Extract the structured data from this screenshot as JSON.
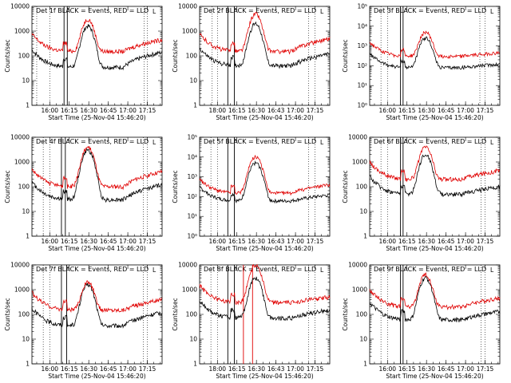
{
  "chart_data": [
    {
      "type": "line",
      "title": "Det 1f BLACK = Events, RED = LLD",
      "xlabel": "Start Time (25-Nov-04 15:46:20)",
      "ylabel": "Counts/sec",
      "x_tick_labels": [
        "16:00",
        "16:15",
        "16:30",
        "16:45",
        "17:00",
        "17:15"
      ],
      "y_tick_labels": [
        "1",
        "10",
        "100",
        "1000",
        "10000"
      ],
      "yscale": "log",
      "ylim": [
        1,
        10000
      ],
      "legend_mark": "L",
      "series": [
        {
          "color": "#000000",
          "base": 35,
          "peak": 1600,
          "spike": 1300,
          "end": 140
        },
        {
          "color": "#e00000",
          "base": 150,
          "peak": 3000,
          "spike": 1200,
          "end": 450
        }
      ],
      "solid_lines": [
        "16:11",
        "16:13.5"
      ],
      "red_lines": [],
      "dotted_lines": [
        "15:50",
        "16:00",
        "17:12.5",
        "17:15"
      ]
    },
    {
      "type": "line",
      "title": "Det 2f BLACK = Events, RED = LLD",
      "xlabel": "Start Time (25-Nov-04 15:46:20)",
      "ylabel": "Counts/sec",
      "x_tick_labels": [
        "18:00",
        "16:15",
        "16:30",
        "16:43",
        "17:00",
        "17:15"
      ],
      "y_tick_labels": [
        "1",
        "10",
        "100",
        "1000",
        "10000"
      ],
      "yscale": "log",
      "ylim": [
        1,
        10000
      ],
      "legend_mark": "L",
      "series": [
        {
          "color": "#000000",
          "base": 40,
          "peak": 2000,
          "spike": 150,
          "end": 120
        },
        {
          "color": "#e00000",
          "base": 150,
          "peak": 5000,
          "spike": 500,
          "end": 500
        }
      ],
      "solid_lines": [
        "16:08",
        "16:13"
      ],
      "red_lines": [],
      "dotted_lines": [
        "15:56",
        "16:00",
        "17:10",
        "17:15"
      ]
    },
    {
      "type": "line",
      "title": "Det 3f BLACK = Events, RED = LLD",
      "xlabel": "Start Time (25-Nov-04 15:46:20)",
      "ylabel": "Counts/sec",
      "x_tick_labels": [
        "16:00",
        "16:15",
        "16:30",
        "16:45",
        "17:00",
        "17:15"
      ],
      "y_tick_labels": [
        "10⁰",
        "10¹",
        "10²",
        "10³",
        "10⁴",
        "10⁵"
      ],
      "yscale": "log",
      "ylim": [
        1,
        100000
      ],
      "legend_mark": "L",
      "series": [
        {
          "color": "#000000",
          "base": 80,
          "peak": 2500,
          "spike": 150,
          "end": 120
        },
        {
          "color": "#e00000",
          "base": 300,
          "peak": 5000,
          "spike": 400,
          "end": 450
        }
      ],
      "solid_lines": [
        "16:10",
        "16:12"
      ],
      "red_lines": [],
      "dotted_lines": [
        "15:55",
        "16:00",
        "17:11",
        "17:15"
      ]
    },
    {
      "type": "line",
      "title": "Det 4f BLACK = Events, RED = LLD",
      "xlabel": "Start Time (25-Nov-04 15:46:20)",
      "ylabel": "Counts/sec",
      "x_tick_labels": [
        "16:00",
        "16:15",
        "16:30",
        "16:45",
        "17:00",
        "17:15"
      ],
      "y_tick_labels": [
        "1",
        "10",
        "100",
        "1000",
        "10000"
      ],
      "yscale": "log",
      "ylim": [
        1,
        10000
      ],
      "legend_mark": "L",
      "series": [
        {
          "color": "#000000",
          "base": 30,
          "peak": 3000,
          "spike": 80,
          "end": 120
        },
        {
          "color": "#e00000",
          "base": 100,
          "peak": 4000,
          "spike": 300,
          "end": 400
        }
      ],
      "solid_lines": [
        "16:09",
        "16:12"
      ],
      "red_lines": [],
      "dotted_lines": [
        "15:55",
        "16:00",
        "17:12",
        "17:15"
      ]
    },
    {
      "type": "line",
      "title": "Det 5f BLACK = Events, RED = LLD",
      "xlabel": "Start Time (25-Nov-04 15:46:20)",
      "ylabel": "Counts/sec",
      "x_tick_labels": [
        "16:00",
        "16:15",
        "16:30",
        "16:43",
        "17:00",
        "17:15"
      ],
      "y_tick_labels": [
        "10⁰",
        "10¹",
        "10²",
        "10³",
        "10⁴",
        "10⁵"
      ],
      "yscale": "log",
      "ylim": [
        1,
        100000
      ],
      "legend_mark": "L",
      "series": [
        {
          "color": "#000000",
          "base": 60,
          "peak": 5000,
          "spike": 150,
          "end": 120
        },
        {
          "color": "#e00000",
          "base": 150,
          "peak": 10000,
          "spike": 300,
          "end": 400
        }
      ],
      "solid_lines": [
        "16:08",
        "16:13"
      ],
      "red_lines": [],
      "dotted_lines": [
        "15:55",
        "16:00",
        "17:10",
        "17:15"
      ]
    },
    {
      "type": "line",
      "title": "Det 6f BLACK = Events, RED = LLD",
      "xlabel": "Start Time (25-Nov-04 15:46:20)",
      "ylabel": "Counts/sec",
      "x_tick_labels": [
        "16:00",
        "16:15",
        "16:30",
        "16:45",
        "17:00",
        "17:15"
      ],
      "y_tick_labels": [
        "1",
        "10",
        "100",
        "1000",
        "10000"
      ],
      "yscale": "log",
      "ylim": [
        1,
        10000
      ],
      "legend_mark": "L",
      "series": [
        {
          "color": "#000000",
          "base": 50,
          "peak": 2000,
          "spike": 90,
          "end": 100
        },
        {
          "color": "#e00000",
          "base": 200,
          "peak": 4000,
          "spike": 400,
          "end": 450
        }
      ],
      "solid_lines": [
        "16:10",
        "16:12"
      ],
      "red_lines": [],
      "dotted_lines": [
        "15:55",
        "16:00",
        "17:12",
        "17:15"
      ]
    },
    {
      "type": "line",
      "title": "Det 7f BLACK = Events, RED = LLD",
      "xlabel": "Start Time (25-Nov-04 15:46:20)",
      "ylabel": "Counts/sec",
      "x_tick_labels": [
        "16:00",
        "16:15",
        "16:30",
        "16:45",
        "17:00",
        "17:15"
      ],
      "y_tick_labels": [
        "1",
        "10",
        "100",
        "1000",
        "10000"
      ],
      "yscale": "log",
      "ylim": [
        1,
        10000
      ],
      "legend_mark": "L",
      "series": [
        {
          "color": "#000000",
          "base": 35,
          "peak": 1600,
          "spike": 80,
          "end": 120
        },
        {
          "color": "#e00000",
          "base": 150,
          "peak": 2000,
          "spike": 200,
          "end": 400
        }
      ],
      "solid_lines": [
        "16:09",
        "16:13"
      ],
      "red_lines": [],
      "dotted_lines": [
        "15:55",
        "16:00",
        "17:12",
        "17:15"
      ]
    },
    {
      "type": "line",
      "title": "Det 8f BLACK = Events, RED = LLD",
      "xlabel": "Start Time (25-Nov-04 15:46:20)",
      "ylabel": "Counts/sec",
      "x_tick_labels": [
        "18:00",
        "16:15",
        "16:30",
        "16:43",
        "17:00",
        "17:15"
      ],
      "y_tick_labels": [
        "1",
        "10",
        "100",
        "1000",
        "10000"
      ],
      "yscale": "log",
      "ylim": [
        1,
        10000
      ],
      "legend_mark": "L",
      "series": [
        {
          "color": "#000000",
          "base": 70,
          "peak": 3000,
          "spike": 120,
          "end": 150
        },
        {
          "color": "#e00000",
          "base": 300,
          "peak": 10000,
          "spike": 400,
          "end": 500
        }
      ],
      "solid_lines": [
        "16:08",
        "16:13"
      ],
      "red_lines": [
        "16:20",
        "16:27"
      ],
      "dotted_lines": [
        "15:55",
        "16:00",
        "17:10",
        "17:15"
      ]
    },
    {
      "type": "line",
      "title": "Det 9f BLACK = Events, RED = LLD",
      "xlabel": "Start Time (25-Nov-04 15:46:20)",
      "ylabel": "Counts/sec",
      "x_tick_labels": [
        "16:00",
        "16:15",
        "16:30",
        "16:45",
        "17:00",
        "17:15"
      ],
      "y_tick_labels": [
        "1",
        "10",
        "100",
        "1000",
        "10000"
      ],
      "yscale": "log",
      "ylim": [
        1,
        10000
      ],
      "legend_mark": "L",
      "series": [
        {
          "color": "#000000",
          "base": 60,
          "peak": 3000,
          "spike": 120,
          "end": 130
        },
        {
          "color": "#e00000",
          "base": 200,
          "peak": 4000,
          "spike": 300,
          "end": 450
        }
      ],
      "solid_lines": [
        "16:10",
        "16:12"
      ],
      "red_lines": [],
      "dotted_lines": [
        "15:55",
        "16:00",
        "17:12",
        "17:15"
      ]
    }
  ]
}
